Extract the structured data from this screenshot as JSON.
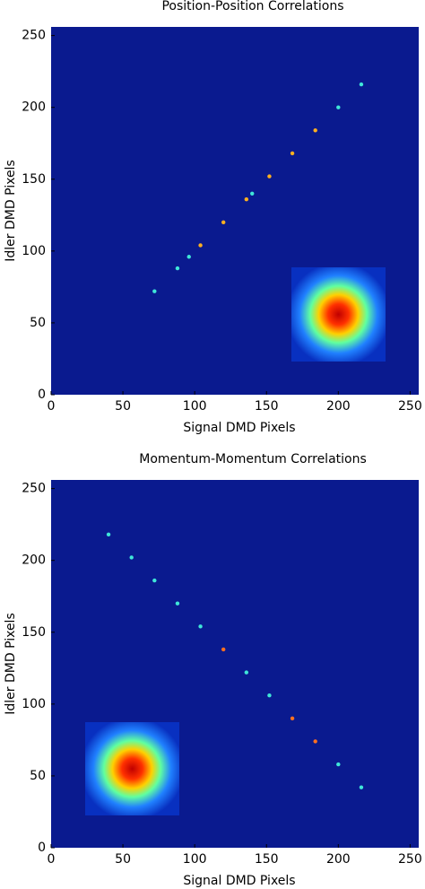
{
  "chart_data": [
    {
      "type": "scatter",
      "title": "Position-Position Correlations",
      "x_label": "Signal DMD Pixels",
      "y_label": "Idler DMD Pixels",
      "xlim": [
        0,
        256
      ],
      "ylim": [
        0,
        256
      ],
      "xticks": [
        0,
        50,
        100,
        150,
        200,
        250
      ],
      "yticks": [
        0,
        50,
        100,
        150,
        200,
        250
      ],
      "background": "#0a1a8f",
      "series": [
        {
          "color": "#3fe6d8",
          "x": [
            72,
            88,
            96,
            140,
            200,
            216
          ],
          "y": [
            72,
            88,
            96,
            140,
            200,
            216
          ]
        },
        {
          "color": "#ffb020",
          "x": [
            104,
            120,
            136,
            152,
            168,
            184
          ],
          "y": [
            104,
            120,
            136,
            152,
            168,
            184
          ]
        }
      ]
    },
    {
      "type": "scatter",
      "title": "Momentum-Momentum Correlations",
      "x_label": "Signal DMD Pixels",
      "y_label": "Idler DMD Pixels",
      "xlim": [
        0,
        256
      ],
      "ylim": [
        0,
        256
      ],
      "xticks": [
        0,
        50,
        100,
        150,
        200,
        250
      ],
      "yticks": [
        0,
        50,
        100,
        150,
        200,
        250
      ],
      "background": "#0a1a8f",
      "series": [
        {
          "color": "#3fe6d8",
          "x": [
            40,
            56,
            72,
            88,
            104,
            136,
            152,
            200,
            216
          ],
          "y": [
            218,
            202,
            186,
            170,
            154,
            122,
            106,
            58,
            42
          ]
        },
        {
          "color": "#ff7020",
          "x": [
            120,
            168,
            184
          ],
          "y": [
            138,
            90,
            74
          ]
        }
      ]
    }
  ]
}
